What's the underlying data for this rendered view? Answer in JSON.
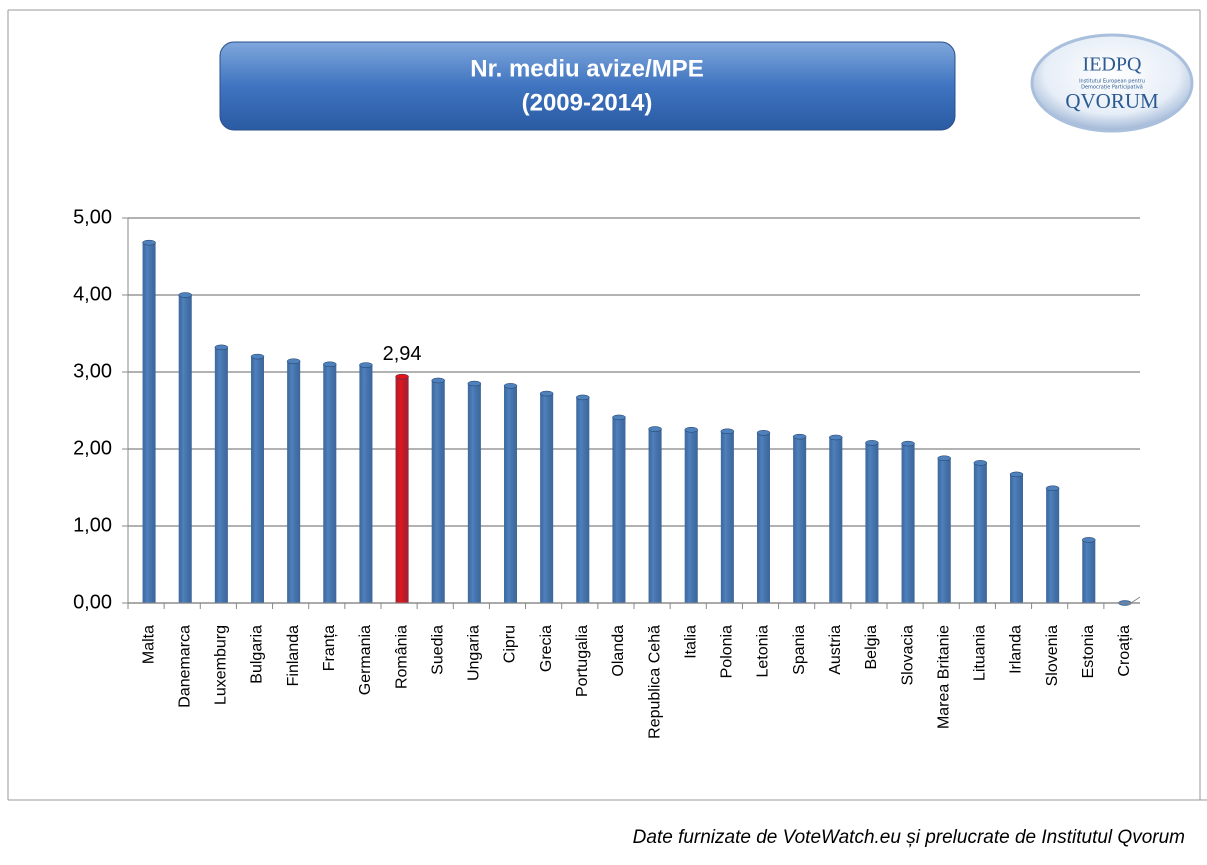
{
  "chart_data": {
    "type": "bar",
    "title": [
      "Nr. mediu avize/MPE",
      "(2009-2014)"
    ],
    "logo": {
      "top": "IEDPQ",
      "small": [
        "Institutul European pentru",
        "Democrație Participativă"
      ],
      "bottom": "QVORUM"
    },
    "source": "Date furnizate de VoteWatch.eu și prelucrate de Institutul Qvorum",
    "categories": [
      "Malta",
      "Danemarca",
      "Luxemburg",
      "Bulgaria",
      "Finlanda",
      "Franța",
      "Germania",
      "România",
      "Suedia",
      "Ungaria",
      "Cipru",
      "Grecia",
      "Portugalia",
      "Olanda",
      "Republica Cehă",
      "Italia",
      "Polonia",
      "Letonia",
      "Spania",
      "Austria",
      "Belgia",
      "Slovacia",
      "Marea Britanie",
      "Lituania",
      "Irlanda",
      "Slovenia",
      "Estonia",
      "Croația"
    ],
    "values": [
      4.68,
      4.0,
      3.32,
      3.2,
      3.14,
      3.1,
      3.09,
      2.94,
      2.89,
      2.85,
      2.82,
      2.72,
      2.67,
      2.41,
      2.26,
      2.25,
      2.23,
      2.21,
      2.16,
      2.15,
      2.08,
      2.07,
      1.88,
      1.82,
      1.67,
      1.49,
      0.82,
      0
    ],
    "value_labels": [
      null,
      null,
      null,
      null,
      null,
      null,
      null,
      "2,94",
      null,
      null,
      null,
      null,
      null,
      null,
      null,
      null,
      null,
      null,
      null,
      null,
      null,
      null,
      null,
      null,
      null,
      null,
      null,
      null
    ],
    "colors": [
      "#4f81bd",
      "#4f81bd",
      "#4f81bd",
      "#4f81bd",
      "#4f81bd",
      "#4f81bd",
      "#4f81bd",
      "#e8131a",
      "#4f81bd",
      "#4f81bd",
      "#4f81bd",
      "#4f81bd",
      "#4f81bd",
      "#4f81bd",
      "#4f81bd",
      "#4f81bd",
      "#4f81bd",
      "#4f81bd",
      "#4f81bd",
      "#4f81bd",
      "#4f81bd",
      "#4f81bd",
      "#4f81bd",
      "#4f81bd",
      "#4f81bd",
      "#4f81bd",
      "#4f81bd",
      "#4f81bd"
    ],
    "ylim": [
      0,
      5
    ],
    "yticks": [
      {
        "value": 0,
        "label": "0,00"
      },
      {
        "value": 1,
        "label": "1,00"
      },
      {
        "value": 2,
        "label": "2,00"
      },
      {
        "value": 3,
        "label": "3,00"
      },
      {
        "value": 4,
        "label": "4,00"
      },
      {
        "value": 5,
        "label": "5,00"
      }
    ],
    "grid": true
  }
}
